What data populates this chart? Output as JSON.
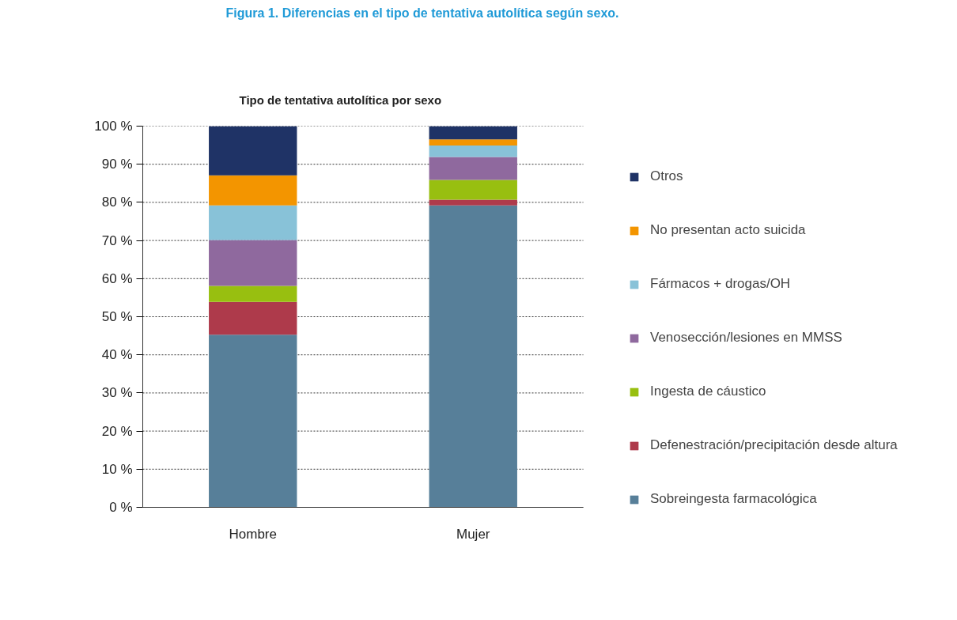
{
  "chart_data": {
    "type": "bar",
    "title": "Figura 1. Diferencias en el tipo de tentativa autolítica según sexo.",
    "subtitle": "Tipo de tentativa autolítica por sexo",
    "categories": [
      "Hombre",
      "Mujer"
    ],
    "stacked": true,
    "series": [
      {
        "name": "Sobreingesta farmacológica",
        "color": "#577f99",
        "values": [
          45.3,
          79.2
        ]
      },
      {
        "name": "Defenestración/precipitación desde altura",
        "color": "#ae3a4b",
        "values": [
          8.6,
          1.5
        ]
      },
      {
        "name": "Ingesta de cáustico",
        "color": "#98bf10",
        "values": [
          4.2,
          5.2
        ]
      },
      {
        "name": "Venosección/lesiones en MMSS",
        "color": "#8f699e",
        "values": [
          12.0,
          6.0
        ]
      },
      {
        "name": "Fármacos + drogas/OH",
        "color": "#88c2d8",
        "values": [
          9.1,
          3.0
        ]
      },
      {
        "name": "No presentan acto suicida",
        "color": "#f39500",
        "values": [
          7.9,
          1.6
        ]
      },
      {
        "name": "Otros",
        "color": "#1f3366",
        "values": [
          12.9,
          3.5
        ]
      }
    ],
    "ylim": [
      0,
      100
    ],
    "yticks": [
      {
        "value": 0,
        "label": "0 %"
      },
      {
        "value": 10,
        "label": "10 %"
      },
      {
        "value": 20,
        "label": "20 %"
      },
      {
        "value": 30,
        "label": "30 %"
      },
      {
        "value": 40,
        "label": "40 %"
      },
      {
        "value": 50,
        "label": "50 %"
      },
      {
        "value": 60,
        "label": "60 %"
      },
      {
        "value": 70,
        "label": "70 %"
      },
      {
        "value": 80,
        "label": "80 %"
      },
      {
        "value": 90,
        "label": "90 %"
      },
      {
        "value": 100,
        "label": "100 %"
      }
    ],
    "grid": "y",
    "legend": "right"
  }
}
